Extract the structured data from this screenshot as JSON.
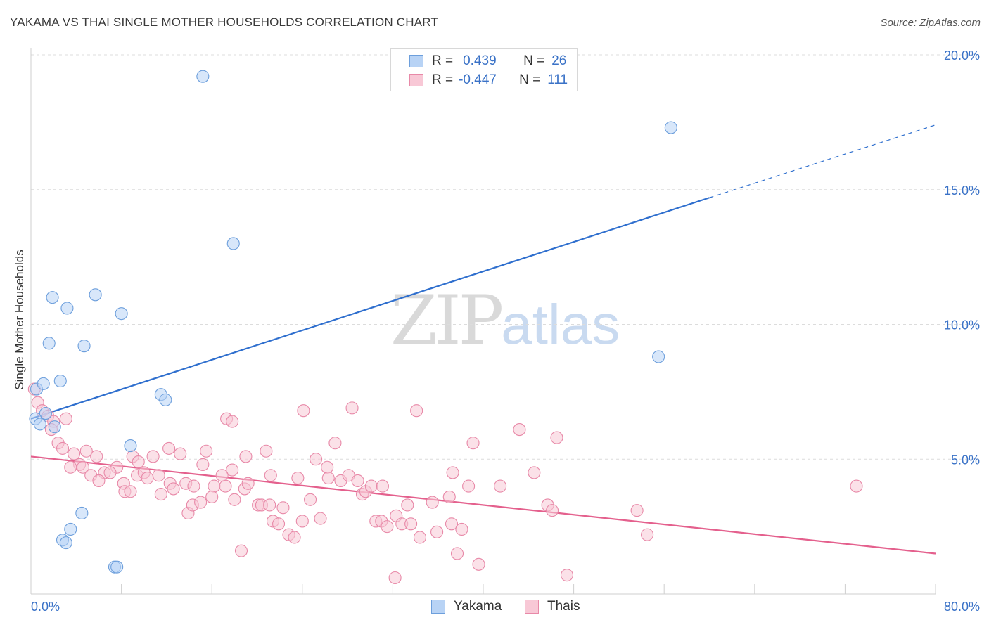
{
  "title": "YAKAMA VS THAI SINGLE MOTHER HOUSEHOLDS CORRELATION CHART",
  "source": "Source: ZipAtlas.com",
  "watermark": {
    "zip": "ZIP",
    "atlas": "atlas"
  },
  "legend": {
    "r_label": "R =",
    "n_label": "N =",
    "rows": [
      {
        "r": "0.439",
        "n": "26",
        "fill": "#b8d3f5",
        "stroke": "#6d9fdc"
      },
      {
        "r": "-0.447",
        "n": "111",
        "fill": "#f8c8d6",
        "stroke": "#e889a8"
      }
    ]
  },
  "chart_data": {
    "type": "scatter",
    "title": "YAKAMA VS THAI SINGLE MOTHER HOUSEHOLDS CORRELATION CHART",
    "xlabel": "",
    "ylabel": "Single Mother Households",
    "xlim": [
      0,
      80
    ],
    "ylim": [
      0,
      20
    ],
    "x_tick_labels": [
      "0.0%",
      "80.0%"
    ],
    "y_tick_labels": [
      "5.0%",
      "10.0%",
      "15.0%",
      "20.0%"
    ],
    "y_tick_values": [
      5,
      10,
      15,
      20
    ],
    "grid": "horizontal dashed",
    "legend_position": "top-center",
    "series": [
      {
        "name": "Yakama",
        "color": "#6d9fdc",
        "fill": "#b8d3f5",
        "trend": {
          "x0": 0,
          "y0": 6.5,
          "x1": 60,
          "y1": 14.7,
          "dashed_to_x": 80,
          "dashed_to_y": 17.4,
          "color": "#2f6fce"
        },
        "points": [
          [
            15.2,
            19.2
          ],
          [
            56.6,
            17.3
          ],
          [
            17.9,
            13.0
          ],
          [
            1.9,
            11.0
          ],
          [
            5.7,
            11.1
          ],
          [
            3.2,
            10.6
          ],
          [
            8.0,
            10.4
          ],
          [
            1.6,
            9.3
          ],
          [
            4.7,
            9.2
          ],
          [
            55.5,
            8.8
          ],
          [
            2.6,
            7.9
          ],
          [
            0.5,
            7.6
          ],
          [
            1.1,
            7.8
          ],
          [
            11.5,
            7.4
          ],
          [
            11.9,
            7.2
          ],
          [
            1.3,
            6.7
          ],
          [
            0.4,
            6.5
          ],
          [
            0.8,
            6.3
          ],
          [
            2.1,
            6.2
          ],
          [
            8.8,
            5.5
          ],
          [
            4.5,
            3.0
          ],
          [
            3.5,
            2.4
          ],
          [
            2.8,
            2.0
          ],
          [
            3.1,
            1.9
          ],
          [
            7.4,
            1.0
          ],
          [
            7.6,
            1.0
          ]
        ]
      },
      {
        "name": "Thais",
        "color": "#e889a8",
        "fill": "#f8c8d6",
        "trend": {
          "x0": 0,
          "y0": 5.1,
          "x1": 80,
          "y1": 1.5,
          "color": "#e4608d"
        },
        "points": [
          [
            0.3,
            7.6
          ],
          [
            0.6,
            7.1
          ],
          [
            1.0,
            6.8
          ],
          [
            1.5,
            6.6
          ],
          [
            2.0,
            6.4
          ],
          [
            3.1,
            6.5
          ],
          [
            1.8,
            6.1
          ],
          [
            2.4,
            5.6
          ],
          [
            2.8,
            5.4
          ],
          [
            3.8,
            5.2
          ],
          [
            4.9,
            5.3
          ],
          [
            5.8,
            5.1
          ],
          [
            4.3,
            4.8
          ],
          [
            3.5,
            4.7
          ],
          [
            4.6,
            4.7
          ],
          [
            6.5,
            4.5
          ],
          [
            7.6,
            4.7
          ],
          [
            5.3,
            4.4
          ],
          [
            7.0,
            4.5
          ],
          [
            8.2,
            4.1
          ],
          [
            6.0,
            4.2
          ],
          [
            9.4,
            4.4
          ],
          [
            9.0,
            5.1
          ],
          [
            10.0,
            4.5
          ],
          [
            10.8,
            5.1
          ],
          [
            11.3,
            4.4
          ],
          [
            12.2,
            5.4
          ],
          [
            13.2,
            5.2
          ],
          [
            9.5,
            4.9
          ],
          [
            10.3,
            4.3
          ],
          [
            12.3,
            4.1
          ],
          [
            13.7,
            4.1
          ],
          [
            14.4,
            4.0
          ],
          [
            15.2,
            4.8
          ],
          [
            15.5,
            5.3
          ],
          [
            16.2,
            4.0
          ],
          [
            16.0,
            3.6
          ],
          [
            17.2,
            4.0
          ],
          [
            17.8,
            4.6
          ],
          [
            16.9,
            4.4
          ],
          [
            17.3,
            6.5
          ],
          [
            17.8,
            6.4
          ],
          [
            8.3,
            3.8
          ],
          [
            8.8,
            3.8
          ],
          [
            11.5,
            3.7
          ],
          [
            12.6,
            3.9
          ],
          [
            13.9,
            3.0
          ],
          [
            14.3,
            3.3
          ],
          [
            15.0,
            3.4
          ],
          [
            18.0,
            3.5
          ],
          [
            18.9,
            3.9
          ],
          [
            19.2,
            4.1
          ],
          [
            19.0,
            5.1
          ],
          [
            20.1,
            3.3
          ],
          [
            20.4,
            3.3
          ],
          [
            21.1,
            3.3
          ],
          [
            20.8,
            5.3
          ],
          [
            21.2,
            4.4
          ],
          [
            21.4,
            2.7
          ],
          [
            21.9,
            2.6
          ],
          [
            22.3,
            3.2
          ],
          [
            22.8,
            2.2
          ],
          [
            23.3,
            2.1
          ],
          [
            23.6,
            4.3
          ],
          [
            24.1,
            6.8
          ],
          [
            24.7,
            3.5
          ],
          [
            25.2,
            5.0
          ],
          [
            25.6,
            2.8
          ],
          [
            26.2,
            4.7
          ],
          [
            26.3,
            4.3
          ],
          [
            26.9,
            5.6
          ],
          [
            27.4,
            4.2
          ],
          [
            28.1,
            4.4
          ],
          [
            28.4,
            6.9
          ],
          [
            28.9,
            4.2
          ],
          [
            29.3,
            3.7
          ],
          [
            29.6,
            3.8
          ],
          [
            30.1,
            4.0
          ],
          [
            30.5,
            2.7
          ],
          [
            31.0,
            2.7
          ],
          [
            31.1,
            4.0
          ],
          [
            31.5,
            2.5
          ],
          [
            32.3,
            2.9
          ],
          [
            32.8,
            2.6
          ],
          [
            33.3,
            3.3
          ],
          [
            33.6,
            2.6
          ],
          [
            34.1,
            6.8
          ],
          [
            34.4,
            2.1
          ],
          [
            35.5,
            3.4
          ],
          [
            35.9,
            2.3
          ],
          [
            37.0,
            3.6
          ],
          [
            37.3,
            4.5
          ],
          [
            37.2,
            2.6
          ],
          [
            37.7,
            1.5
          ],
          [
            38.1,
            2.4
          ],
          [
            38.7,
            4.0
          ],
          [
            39.1,
            5.6
          ],
          [
            39.6,
            1.1
          ],
          [
            41.5,
            4.0
          ],
          [
            43.2,
            6.1
          ],
          [
            44.5,
            4.5
          ],
          [
            45.7,
            3.3
          ],
          [
            46.1,
            3.1
          ],
          [
            46.5,
            5.8
          ],
          [
            47.4,
            0.7
          ],
          [
            53.6,
            3.1
          ],
          [
            54.5,
            2.2
          ],
          [
            73.0,
            4.0
          ],
          [
            18.6,
            1.6
          ],
          [
            32.2,
            0.6
          ],
          [
            24.0,
            2.7
          ]
        ]
      }
    ]
  }
}
